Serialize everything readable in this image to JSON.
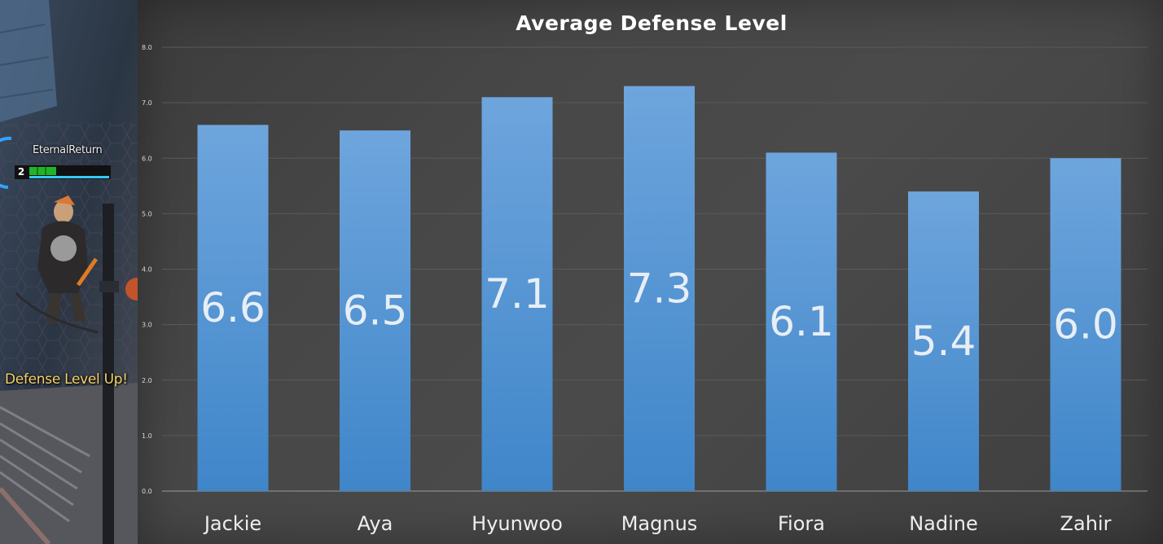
{
  "game": {
    "player_name": "EternalReturn",
    "player_level": "2",
    "notification": "Defense Level Up!"
  },
  "colors": {
    "bar_top": "#6ea5dd",
    "bar_bottom": "#3f86c9",
    "panel": "#444444"
  },
  "chart_data": {
    "type": "bar",
    "title": "Average Defense Level",
    "xlabel": "",
    "ylabel": "",
    "categories": [
      "Jackie",
      "Aya",
      "Hyunwoo",
      "Magnus",
      "Fiora",
      "Nadine",
      "Zahir"
    ],
    "values": [
      6.6,
      6.5,
      7.1,
      7.3,
      6.1,
      5.4,
      6.0
    ],
    "data_labels": [
      "6.6",
      "6.5",
      "7.1",
      "7.3",
      "6.1",
      "5.4",
      "6.0"
    ],
    "ylim": [
      0,
      8
    ],
    "yticks": [
      "0.0",
      "1.0",
      "2.0",
      "3.0",
      "4.0",
      "5.0",
      "6.0",
      "7.0",
      "8.0"
    ],
    "grid": true,
    "legend": "none"
  }
}
